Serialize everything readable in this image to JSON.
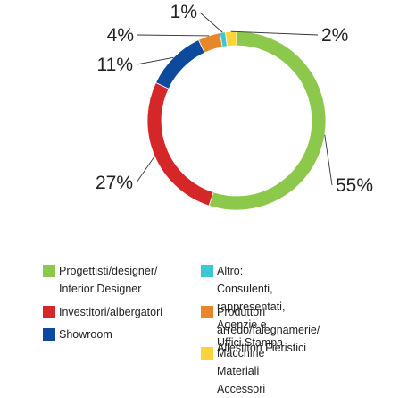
{
  "chart_data": {
    "type": "pie",
    "style": "donut",
    "slices": [
      {
        "label": "Progettisti/designer/\nInterior Designer",
        "value": 55,
        "pct_label": "55%",
        "color": "#8cc84b"
      },
      {
        "label": "Investitori/albergatori",
        "value": 27,
        "pct_label": "27%",
        "color": "#d62728"
      },
      {
        "label": "Showroom",
        "value": 11,
        "pct_label": "11%",
        "color": "#0d4a9e"
      },
      {
        "label": "Produttori arredo/falegnamerie/\nAllestitori Fieristici",
        "value": 4,
        "pct_label": "4%",
        "color": "#e8862a"
      },
      {
        "label": "Altro: Consulenti, rappresentati,\nAgenzie  e Uffici Stampa",
        "value": 1,
        "pct_label": "1%",
        "color": "#3cc8d0"
      },
      {
        "label": "Macchine Materiali Accessori",
        "value": 2,
        "pct_label": "2%",
        "color": "#fbd43a"
      }
    ],
    "legend_placement": "bottom"
  }
}
